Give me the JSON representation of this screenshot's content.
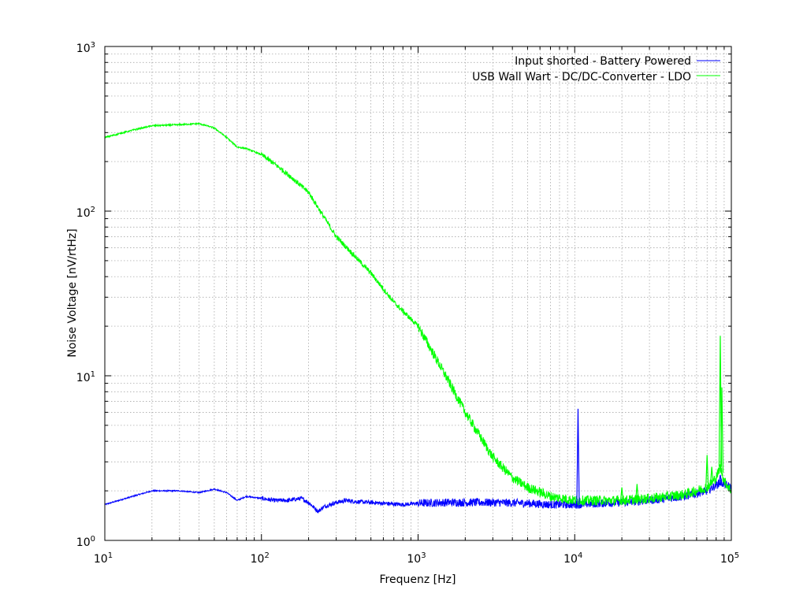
{
  "chart_data": {
    "type": "line",
    "title": "",
    "xlabel": "Frequenz [Hz]",
    "ylabel": "Noise Voltage [nV/rtHz]",
    "xscale": "log",
    "yscale": "log",
    "xlim": [
      10,
      100000
    ],
    "ylim": [
      1,
      1000
    ],
    "grid": true,
    "legend_position": "top-right",
    "x_ticks": [
      {
        "base": "10",
        "exp": "1"
      },
      {
        "base": "10",
        "exp": "2"
      },
      {
        "base": "10",
        "exp": "3"
      },
      {
        "base": "10",
        "exp": "4"
      },
      {
        "base": "10",
        "exp": "5"
      }
    ],
    "y_ticks": [
      {
        "base": "10",
        "exp": "0"
      },
      {
        "base": "10",
        "exp": "1"
      },
      {
        "base": "10",
        "exp": "2"
      },
      {
        "base": "10",
        "exp": "3"
      }
    ],
    "series": [
      {
        "name": "Input shorted - Battery Powered",
        "color": "#0000ff",
        "noise": 0.05,
        "x": [
          10,
          15,
          20,
          30,
          40,
          50,
          60,
          70,
          80,
          100,
          120,
          150,
          180,
          200,
          230,
          250,
          300,
          350,
          400,
          500,
          600,
          800,
          1000,
          1500,
          2000,
          3000,
          5000,
          7000,
          10000,
          15000,
          20000,
          30000,
          50000,
          70000,
          85000,
          100000
        ],
        "y": [
          1.65,
          1.85,
          2.0,
          2.0,
          1.95,
          2.05,
          1.95,
          1.75,
          1.85,
          1.8,
          1.75,
          1.75,
          1.8,
          1.7,
          1.5,
          1.6,
          1.7,
          1.75,
          1.72,
          1.7,
          1.68,
          1.65,
          1.68,
          1.7,
          1.7,
          1.7,
          1.68,
          1.65,
          1.65,
          1.68,
          1.7,
          1.75,
          1.85,
          2.0,
          2.25,
          2.1
        ]
      },
      {
        "name": "USB Wall Wart - DC/DC-Converter - LDO",
        "color": "#00ff00",
        "noise": 0.06,
        "x": [
          10,
          15,
          20,
          30,
          40,
          50,
          60,
          70,
          80,
          100,
          120,
          150,
          200,
          300,
          500,
          700,
          1000,
          1500,
          2000,
          3000,
          4000,
          5000,
          7000,
          10000,
          15000,
          20000,
          30000,
          50000,
          70000,
          80000,
          85000,
          90000,
          100000
        ],
        "y": [
          280,
          310,
          330,
          335,
          340,
          320,
          280,
          245,
          240,
          220,
          195,
          165,
          130,
          70,
          42,
          28,
          20,
          10,
          6.0,
          3.2,
          2.4,
          2.1,
          1.85,
          1.75,
          1.75,
          1.75,
          1.8,
          1.9,
          2.1,
          2.4,
          2.8,
          2.3,
          2.0
        ]
      }
    ],
    "spikes": [
      {
        "series": 0,
        "x": 10500,
        "y": 6.3
      },
      {
        "series": 0,
        "x": 85000,
        "y": 2.5
      },
      {
        "series": 1,
        "x": 70000,
        "y": 3.3
      },
      {
        "series": 1,
        "x": 75000,
        "y": 2.8
      },
      {
        "series": 1,
        "x": 85000,
        "y": 17.5
      },
      {
        "series": 1,
        "x": 87000,
        "y": 8.5
      },
      {
        "series": 1,
        "x": 20000,
        "y": 2.1
      },
      {
        "series": 1,
        "x": 25000,
        "y": 2.2
      }
    ]
  }
}
